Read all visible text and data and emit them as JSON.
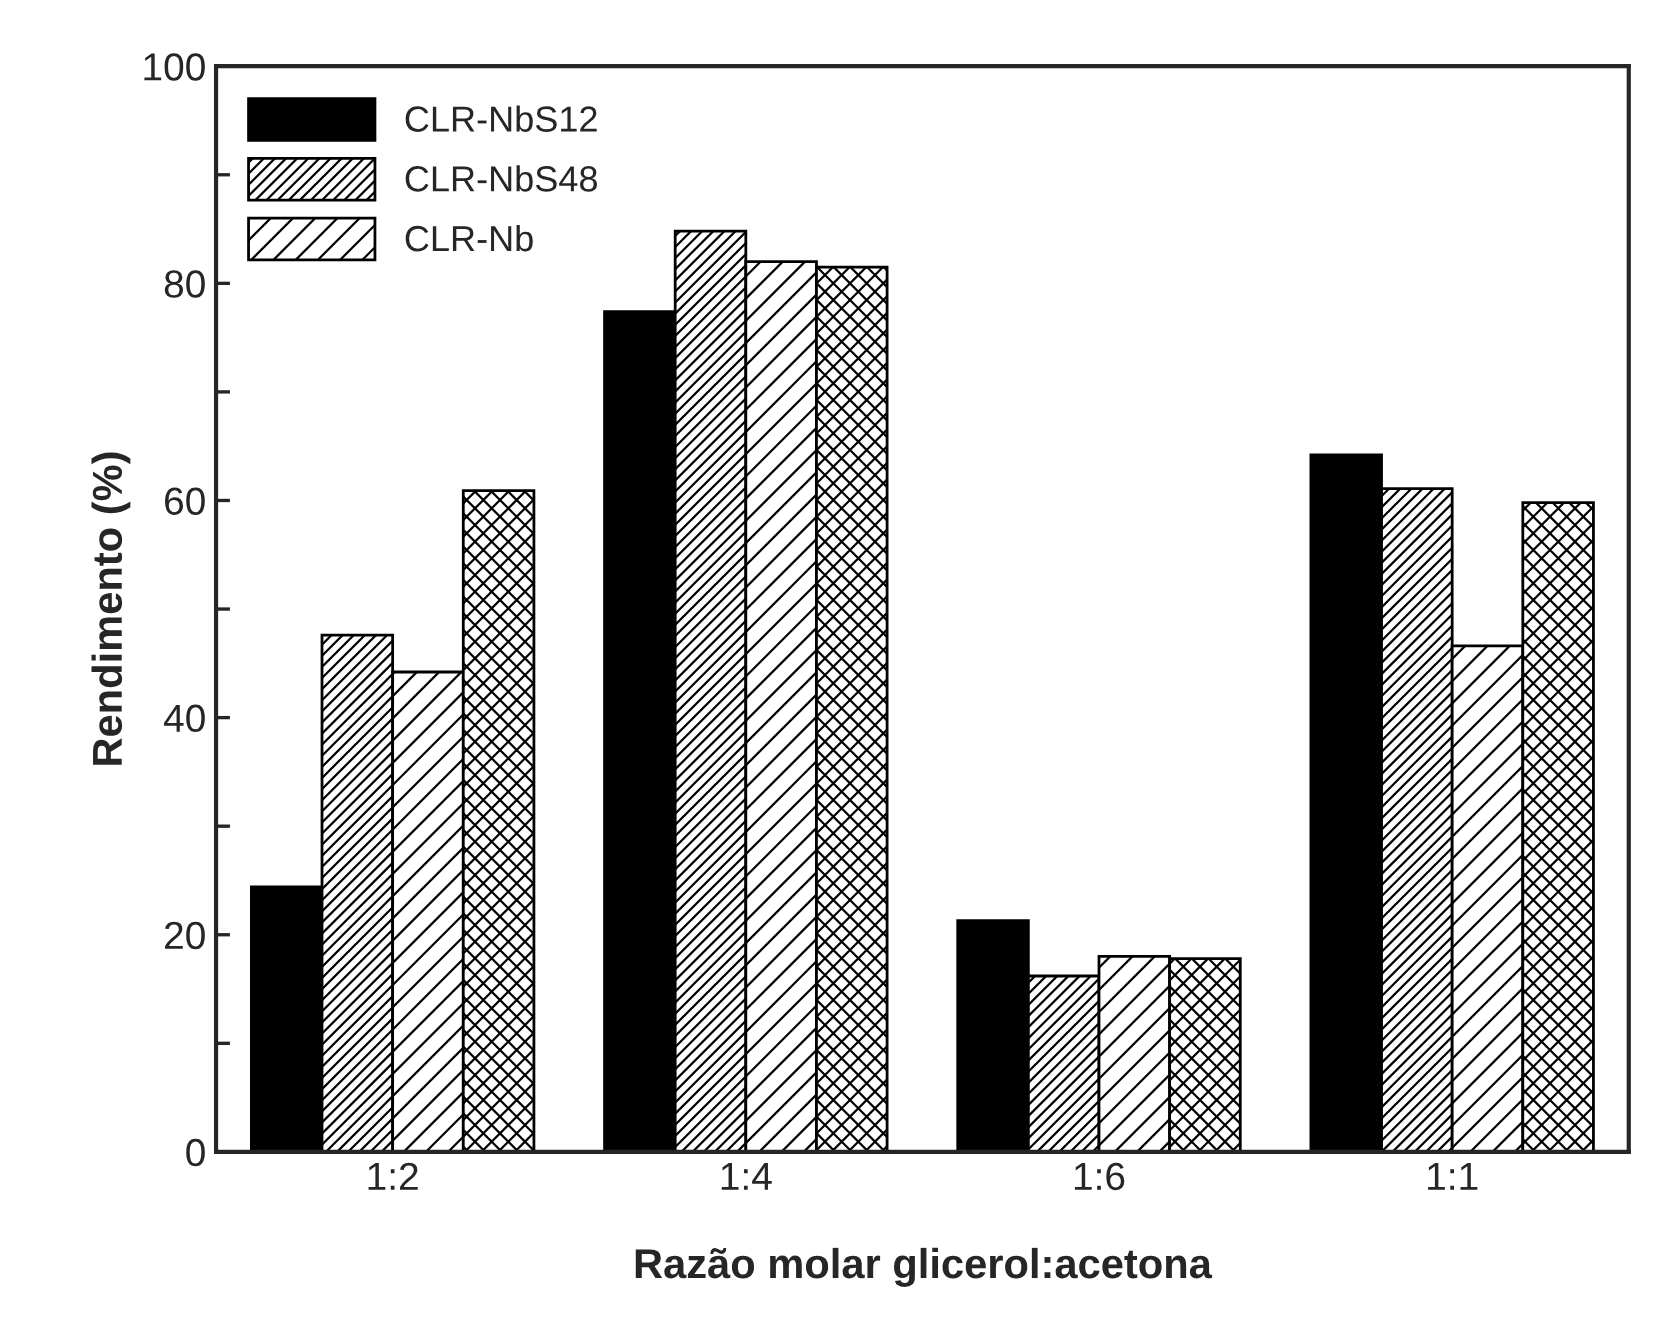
{
  "chart_data": {
    "type": "bar",
    "xlabel": "Razão molar glicerol:acetona",
    "ylabel": "Rendimento (%)",
    "categories": [
      "1:2",
      "1:4",
      "1:6",
      "1:1"
    ],
    "series": [
      {
        "name": "CLR-NbS12",
        "color": "#000000",
        "values": [
          24.4,
          77.4,
          21.3,
          64.2
        ]
      },
      {
        "name": "CLR-NbS48",
        "color": "#000000",
        "values": [
          47.6,
          84.8,
          16.2,
          61.1
        ]
      },
      {
        "name": "CLR-Nb",
        "color": "#000000",
        "values": [
          44.2,
          82.0,
          18.0,
          46.6
        ]
      },
      {
        "color": "#000000",
        "values": [
          60.9,
          81.5,
          17.8,
          59.8
        ]
      }
    ],
    "ylim": [
      0,
      100
    ],
    "yticks": [
      0,
      {
        "value": 10,
        "label": null
      },
      20,
      {
        "value": 30,
        "label": null
      },
      40,
      {
        "value": 50,
        "label": null
      },
      60,
      {
        "value": 70,
        "label": null
      },
      80,
      {
        "value": 90,
        "label": null
      },
      100
    ],
    "grid": false,
    "legend": "top left"
  }
}
